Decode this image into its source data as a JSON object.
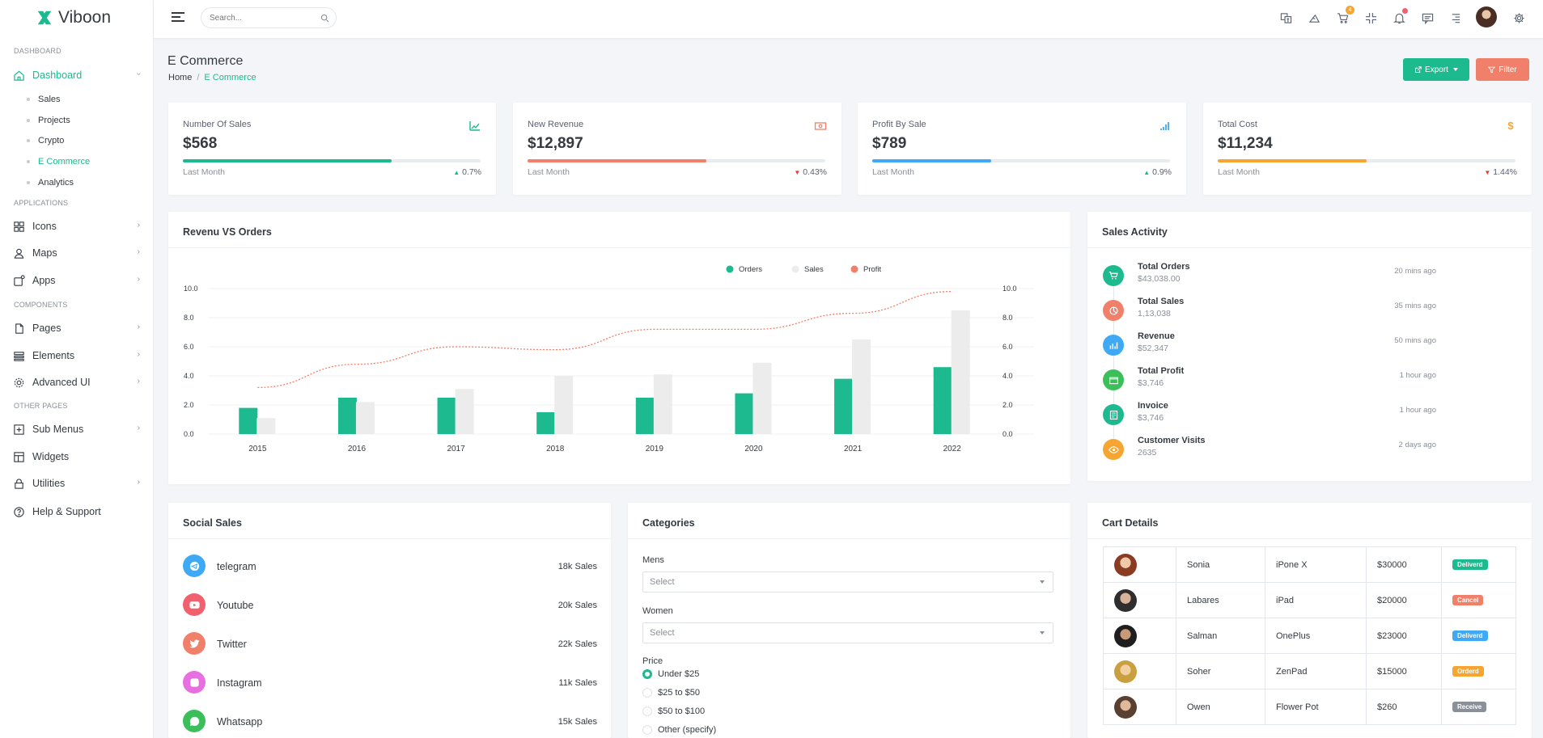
{
  "brand": {
    "name": "Viboon",
    "color": "#1db98f"
  },
  "sidebar": {
    "sections": [
      "DASHBOARD",
      "APPLICATIONS",
      "COMPONENTS",
      "OTHER PAGES"
    ],
    "dashboard": "Dashboard",
    "sub": [
      "Sales",
      "Projects",
      "Crypto",
      "E Commerce",
      "Analytics"
    ],
    "items": [
      "Icons",
      "Maps",
      "Apps",
      "Pages",
      "Elements",
      "Advanced UI",
      "Sub Menus",
      "Widgets",
      "Utilities",
      "Help & Support"
    ]
  },
  "topbar": {
    "search_placeholder": "Search...",
    "cart_count": "4"
  },
  "page": {
    "title": "E Commerce",
    "crumb_home": "Home",
    "crumb_current": "E Commerce",
    "export": "Export",
    "filter": "Filter"
  },
  "stats": [
    {
      "label": "Number Of Sales",
      "value": "$568",
      "foot": "Last Month",
      "change": "0.7%",
      "dir": "up",
      "progress": 0.7,
      "color": "#1db98f",
      "icon": "trending-up-icon"
    },
    {
      "label": "New Revenue",
      "value": "$12,897",
      "foot": "Last Month",
      "change": "0.43%",
      "dir": "down",
      "progress": 0.6,
      "color": "#f0806a",
      "icon": "money-icon"
    },
    {
      "label": "Profit By Sale",
      "value": "$789",
      "foot": "Last Month",
      "change": "0.9%",
      "dir": "up",
      "progress": 0.4,
      "color": "#3fa9f5",
      "icon": "bar-signal-icon"
    },
    {
      "label": "Total Cost",
      "value": "$11,234",
      "foot": "Last Month",
      "change": "1.44%",
      "dir": "down",
      "progress": 0.5,
      "color": "#f7a531",
      "icon": "dollar-icon"
    }
  ],
  "revenue_card": {
    "title": "Revenu VS Orders"
  },
  "chart_data": {
    "type": "bar",
    "title": "Revenu VS Orders",
    "categories": [
      "2015",
      "2016",
      "2017",
      "2018",
      "2019",
      "2020",
      "2021",
      "2022"
    ],
    "series": [
      {
        "name": "Orders",
        "type": "bar",
        "color": "#1db98f",
        "values": [
          1.8,
          2.5,
          2.5,
          1.5,
          2.5,
          2.8,
          3.8,
          4.6
        ]
      },
      {
        "name": "Sales",
        "type": "bar",
        "color": "#ececec",
        "values": [
          1.1,
          2.2,
          3.1,
          4.0,
          4.1,
          4.9,
          6.5,
          8.5
        ]
      },
      {
        "name": "Profit",
        "type": "line",
        "color": "#f0806a",
        "values": [
          3.2,
          4.8,
          6.0,
          5.8,
          7.2,
          7.2,
          8.3,
          9.8
        ]
      }
    ],
    "yticks": [
      "0.0",
      "2.0",
      "4.0",
      "6.0",
      "8.0",
      "10.0"
    ],
    "ylim": [
      0,
      10
    ],
    "legend": "top-center",
    "grid": true
  },
  "activity": {
    "title": "Sales Activity",
    "items": [
      {
        "title": "Total Orders",
        "value": "$43,038.00",
        "time": "20 mins ago",
        "color": "#1db98f",
        "icon": "cart-icon"
      },
      {
        "title": "Total Sales",
        "value": "1,13,038",
        "time": "35 mins ago",
        "color": "#f0806a",
        "icon": "pie-chart-icon"
      },
      {
        "title": "Revenue",
        "value": "$52,347",
        "time": "50 mins ago",
        "color": "#3fa9f5",
        "icon": "bar-chart-icon"
      },
      {
        "title": "Total Profit",
        "value": "$3,746",
        "time": "1 hour ago",
        "color": "#3cbf5a",
        "icon": "wallet-icon"
      },
      {
        "title": "Invoice",
        "value": "$3,746",
        "time": "1 hour ago",
        "color": "#1db98f",
        "icon": "invoice-icon"
      },
      {
        "title": "Customer Visits",
        "value": "2635",
        "time": "2 days ago",
        "color": "#f7a531",
        "icon": "eye-icon"
      }
    ]
  },
  "social": {
    "title": "Social Sales",
    "items": [
      {
        "name": "telegram",
        "sales": "18k Sales",
        "color": "#3fa9f5",
        "icon": "telegram-icon"
      },
      {
        "name": "Youtube",
        "sales": "20k Sales",
        "color": "#f25f6d",
        "icon": "youtube-icon"
      },
      {
        "name": "Twitter",
        "sales": "22k Sales",
        "color": "#f0806a",
        "icon": "twitter-icon"
      },
      {
        "name": "Instagram",
        "sales": "11k Sales",
        "color": "#e86fe0",
        "icon": "instagram-icon"
      },
      {
        "name": "Whatsapp",
        "sales": "15k Sales",
        "color": "#3cbf5a",
        "icon": "whatsapp-icon"
      }
    ]
  },
  "categories": {
    "title": "Categories",
    "mens_label": "Mens",
    "mens_value": "Select",
    "women_label": "Women",
    "women_value": "Select",
    "price_label": "Price",
    "prices": [
      "Under $25",
      "$25 to $50",
      "$50 to $100",
      "Other (specify)"
    ],
    "selected_price": "Under $25"
  },
  "cart": {
    "title": "Cart Details",
    "rows": [
      {
        "name": "Sonia",
        "product": "iPone X",
        "price": "$30000",
        "status": "Deliverd",
        "color": "#1db98f"
      },
      {
        "name": "Labares",
        "product": "iPad",
        "price": "$20000",
        "status": "Cancel",
        "color": "#f0806a"
      },
      {
        "name": "Salman",
        "product": "OnePlus",
        "price": "$23000",
        "status": "Deliverd",
        "color": "#3fa9f5"
      },
      {
        "name": "Soher",
        "product": "ZenPad",
        "price": "$15000",
        "status": "Orderd",
        "color": "#f7a531"
      },
      {
        "name": "Owen",
        "product": "Flower Pot",
        "price": "$260",
        "status": "Receive",
        "color": "#8a8f98"
      }
    ]
  }
}
